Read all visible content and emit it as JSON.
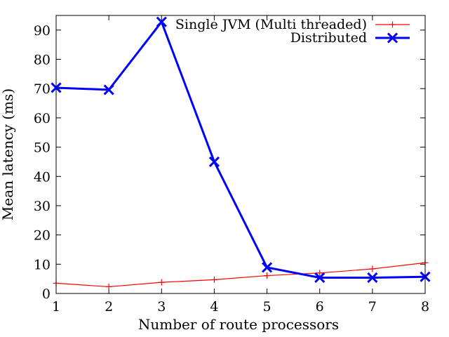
{
  "chart_data": {
    "type": "line",
    "title": "",
    "xlabel": "Number of route processors",
    "ylabel": "Mean latency (ms)",
    "x": [
      1,
      2,
      3,
      4,
      5,
      6,
      7,
      8
    ],
    "xlim": [
      1,
      8
    ],
    "ylim": [
      0,
      95
    ],
    "xticks": [
      1,
      2,
      3,
      4,
      5,
      6,
      7,
      8
    ],
    "yticks": [
      0,
      10,
      20,
      30,
      40,
      50,
      60,
      70,
      80,
      90
    ],
    "grid": false,
    "legend_position": "top-right",
    "series": [
      {
        "name": "Single JVM (Multi threaded)",
        "color": "#ff0000",
        "marker": "plus",
        "values": [
          3.5,
          2.3,
          3.8,
          4.7,
          6.1,
          7.0,
          8.4,
          10.5
        ]
      },
      {
        "name": "Distributed",
        "color": "#0000ff",
        "marker": "x",
        "values": [
          70.3,
          69.6,
          92.8,
          45.0,
          8.9,
          5.4,
          5.4,
          5.7
        ]
      }
    ]
  }
}
